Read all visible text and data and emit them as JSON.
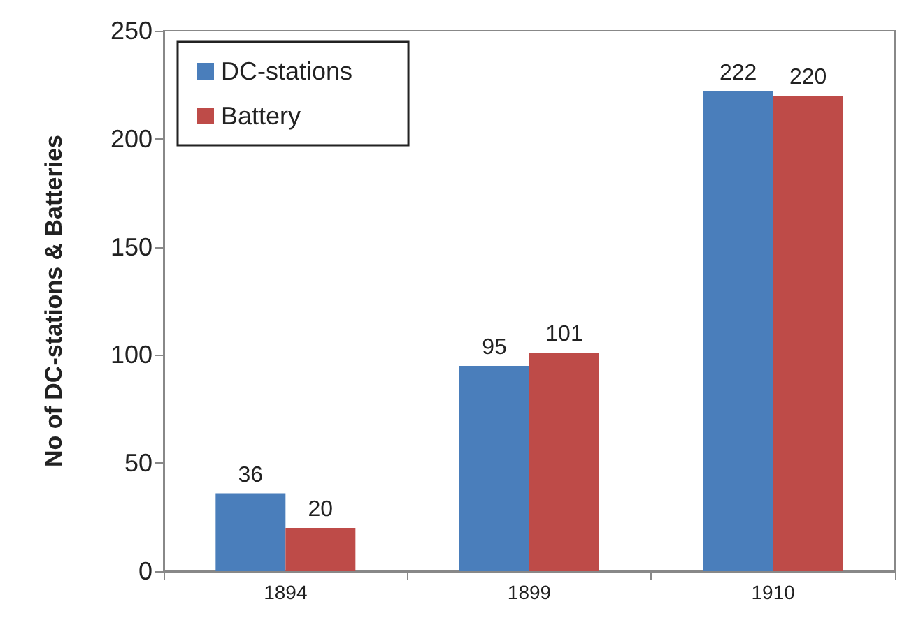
{
  "chart_data": {
    "type": "bar",
    "ylabel": "No of DC-stations & Batteries",
    "categories": [
      "1894",
      "1899",
      "1910"
    ],
    "series": [
      {
        "name": "DC-stations",
        "color": "#4a7ebb",
        "values": [
          36,
          95,
          222
        ]
      },
      {
        "name": "Battery",
        "color": "#be4b48",
        "values": [
          20,
          101,
          220
        ]
      }
    ],
    "ylim": [
      0,
      250
    ],
    "yticks": [
      0,
      50,
      100,
      150,
      200,
      250
    ],
    "grid": false,
    "legend": "top left",
    "data_labels": true
  }
}
